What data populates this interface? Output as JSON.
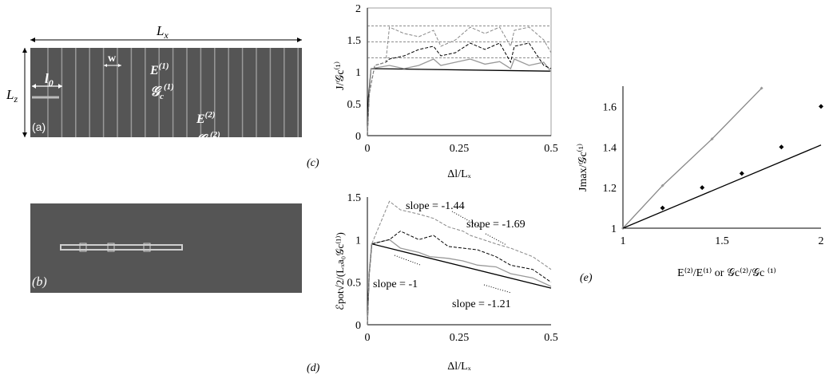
{
  "panel_a": {
    "tag": "(a)",
    "Lx": "L",
    "Lx_sub": "x",
    "Lz": "L",
    "Lz_sub": "z",
    "l0": "l",
    "l0_sub": "0",
    "w": "w",
    "E1": "E",
    "E1_sup": "(1)",
    "G1": "𝒢",
    "G1_sub": "c",
    "G1_sup": "(1)",
    "E2": "E",
    "E2_sup": "(2)",
    "G2": "𝒢",
    "G2_sub": "c",
    "G2_sup": "(2)"
  },
  "panel_b": {
    "tag": "(b)"
  },
  "chart_data": [
    {
      "id": "c",
      "type": "line",
      "tag": "(c)",
      "xlabel": "Δl/Lₓ",
      "ylabel": "J/𝒢c⁽¹⁾",
      "xlim": [
        0,
        0.5
      ],
      "ylim": [
        0,
        2
      ],
      "xticks": [
        "0",
        "0.25",
        "0.5"
      ],
      "yticks": [
        "0",
        "0.5",
        "1",
        "1.5",
        "2"
      ],
      "grid": false,
      "reference_lines": [
        1.22,
        1.47,
        1.72
      ],
      "series": [
        {
          "style": "black-solid",
          "x": [
            0,
            0.003,
            0.01,
            0.5
          ],
          "y": [
            0,
            0.6,
            1.05,
            1.01
          ]
        },
        {
          "style": "gray-solid",
          "x": [
            0,
            0.005,
            0.01,
            0.06,
            0.1,
            0.14,
            0.18,
            0.2,
            0.24,
            0.28,
            0.32,
            0.36,
            0.39,
            0.4,
            0.44,
            0.48,
            0.5
          ],
          "y": [
            0,
            0.65,
            1.05,
            1.1,
            1.05,
            1.1,
            1.2,
            1.1,
            1.15,
            1.2,
            1.12,
            1.16,
            1.05,
            1.2,
            1.1,
            1.15,
            1.0
          ]
        },
        {
          "style": "black-dashed",
          "x": [
            0,
            0.005,
            0.02,
            0.05,
            0.06,
            0.1,
            0.14,
            0.18,
            0.2,
            0.24,
            0.28,
            0.32,
            0.36,
            0.39,
            0.4,
            0.44,
            0.48,
            0.5
          ],
          "y": [
            0,
            0.65,
            1.1,
            1.15,
            1.2,
            1.25,
            1.35,
            1.4,
            1.25,
            1.3,
            1.45,
            1.35,
            1.45,
            1.15,
            1.4,
            1.45,
            1.1,
            1.05
          ]
        },
        {
          "style": "gray-dashed",
          "x": [
            0,
            0.005,
            0.02,
            0.05,
            0.06,
            0.1,
            0.14,
            0.18,
            0.2,
            0.24,
            0.28,
            0.32,
            0.36,
            0.39,
            0.4,
            0.44,
            0.48,
            0.5
          ],
          "y": [
            0,
            0.65,
            1.1,
            1.15,
            1.7,
            1.6,
            1.55,
            1.65,
            1.4,
            1.5,
            1.7,
            1.6,
            1.7,
            1.4,
            1.65,
            1.7,
            1.5,
            1.3
          ]
        }
      ]
    },
    {
      "id": "d",
      "type": "line",
      "tag": "(d)",
      "xlabel": "Δl/Lₓ",
      "ylabel": "ℰpot√2/(Lₓa₀𝒢c⁽¹⁾)",
      "xlim": [
        0,
        0.5
      ],
      "ylim": [
        0,
        1.5
      ],
      "xticks": [
        "0",
        "0.25",
        "0.5"
      ],
      "yticks": [
        "0",
        "0.5",
        "1",
        "1.5"
      ],
      "grid": false,
      "annotations": [
        "slope = -1.44",
        "slope = -1.69",
        "slope = -1",
        "slope = -1.21"
      ],
      "series": [
        {
          "style": "black-solid",
          "x": [
            0,
            0.005,
            0.012,
            0.5
          ],
          "y": [
            0,
            0.6,
            0.95,
            0.43
          ]
        },
        {
          "style": "gray-solid",
          "x": [
            0,
            0.005,
            0.012,
            0.06,
            0.09,
            0.14,
            0.17,
            0.22,
            0.26,
            0.3,
            0.35,
            0.39,
            0.45,
            0.5
          ],
          "y": [
            0,
            0.6,
            0.95,
            1.0,
            0.9,
            0.85,
            0.8,
            0.78,
            0.75,
            0.7,
            0.68,
            0.6,
            0.55,
            0.45
          ]
        },
        {
          "style": "black-dashed",
          "x": [
            0,
            0.005,
            0.012,
            0.06,
            0.09,
            0.14,
            0.18,
            0.22,
            0.26,
            0.3,
            0.35,
            0.39,
            0.45,
            0.5
          ],
          "y": [
            0,
            0.6,
            0.95,
            1.0,
            1.1,
            1.0,
            1.05,
            0.92,
            0.9,
            0.88,
            0.8,
            0.7,
            0.65,
            0.5
          ]
        },
        {
          "style": "gray-dashed",
          "x": [
            0,
            0.005,
            0.012,
            0.06,
            0.09,
            0.14,
            0.18,
            0.22,
            0.26,
            0.28,
            0.35,
            0.39,
            0.45,
            0.5
          ],
          "y": [
            0,
            0.6,
            0.95,
            1.45,
            1.35,
            1.3,
            1.25,
            1.15,
            1.1,
            1.05,
            0.95,
            0.9,
            0.8,
            0.65
          ]
        }
      ]
    },
    {
      "id": "e",
      "type": "scatter",
      "tag": "(e)",
      "xlabel": "E⁽²⁾/E⁽¹⁾ or 𝒢c⁽²⁾/𝒢c ⁽¹⁾",
      "ylabel": "Jmax/𝒢c⁽¹⁾",
      "xlim": [
        1,
        2
      ],
      "ylim": [
        1,
        1.7
      ],
      "xticks": [
        "1",
        "1.5",
        "2"
      ],
      "yticks": [
        "1",
        "1.2",
        "1.4",
        "1.6"
      ],
      "grid": false,
      "series": [
        {
          "style": "gray-line-with-points",
          "x": [
            1,
            1.2,
            1.45,
            1.7
          ],
          "y": [
            1,
            1.21,
            1.44,
            1.69
          ]
        },
        {
          "style": "black-points",
          "x": [
            1.2,
            1.4,
            1.6,
            1.8,
            2.0
          ],
          "y": [
            1.1,
            1.2,
            1.27,
            1.4,
            1.6
          ]
        },
        {
          "style": "black-line",
          "x": [
            1,
            2
          ],
          "y": [
            1,
            1.41
          ]
        }
      ]
    }
  ]
}
